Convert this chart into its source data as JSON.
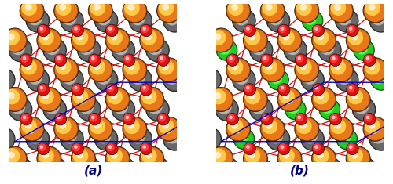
{
  "fig_width": 5.0,
  "fig_height": 2.35,
  "dpi": 100,
  "label_a": "(a)",
  "label_b": "(b)",
  "label_fontsize": 11,
  "label_fontweight": "bold",
  "background_color": "#ffffff",
  "panel_bg": "#ffffff",
  "border_color": "#888888",
  "supercell_color": "#0000cc",
  "supercell_lw": 1.0,
  "colors": {
    "orange_ti": "#E87818",
    "grey_ti": "#686868",
    "green_si": "#22cc22",
    "red_o": "#dd1111"
  }
}
